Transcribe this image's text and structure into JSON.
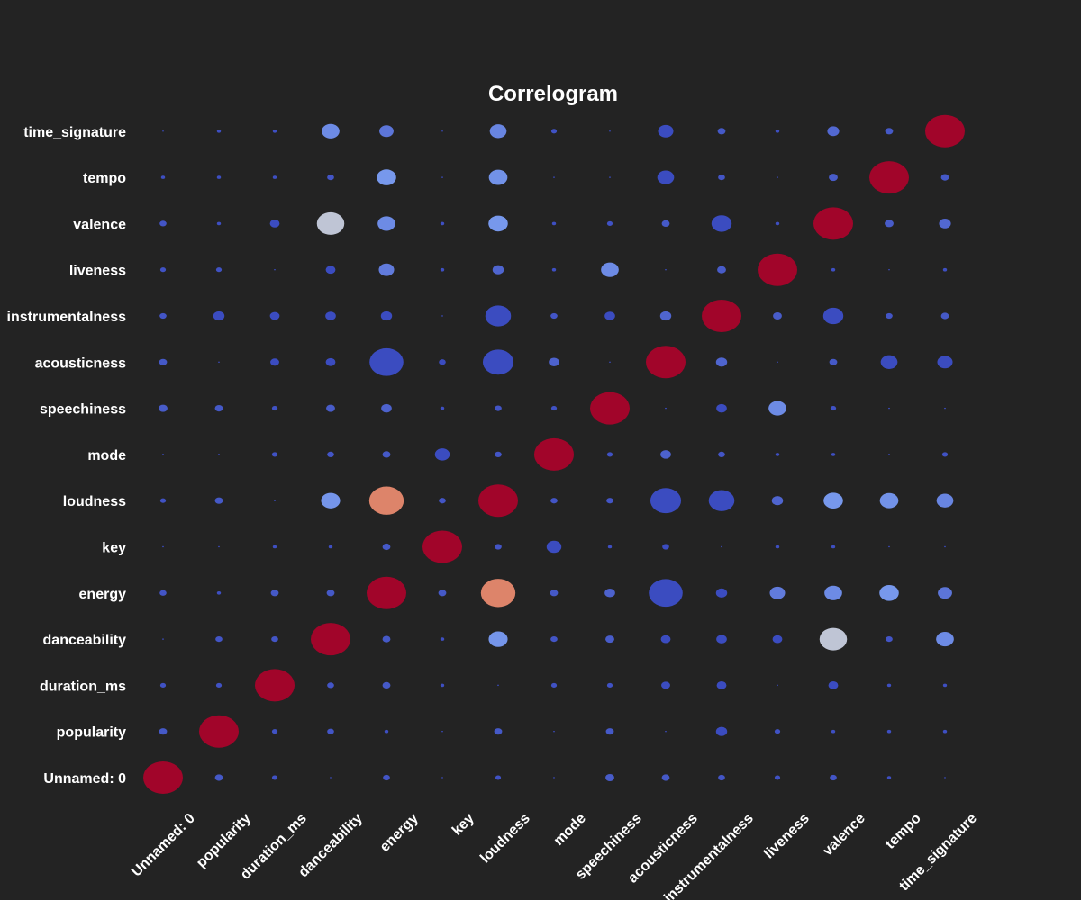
{
  "chart_data": {
    "type": "heatmap",
    "title": "Correlogram",
    "xlabel": "",
    "ylabel": "",
    "grid": false,
    "legend": "none",
    "color_scale": {
      "negative": "#3b4cc0",
      "zero": "#c5c9d3",
      "positive": "#a1052a"
    },
    "variables": [
      "Unnamed: 0",
      "popularity",
      "duration_ms",
      "danceability",
      "energy",
      "key",
      "loudness",
      "mode",
      "speechiness",
      "acousticness",
      "instrumentalness",
      "liveness",
      "valence",
      "tempo",
      "time_signature"
    ],
    "matrix": [
      [
        1.0,
        0.04,
        0.02,
        0.0,
        0.03,
        0.0,
        0.02,
        0.0,
        0.05,
        0.04,
        0.03,
        0.02,
        0.03,
        0.01,
        0.0
      ],
      [
        0.04,
        1.0,
        0.02,
        0.03,
        0.01,
        0.0,
        0.04,
        0.0,
        0.04,
        0.0,
        -0.08,
        0.02,
        0.01,
        0.01,
        0.01
      ],
      [
        0.02,
        0.02,
        1.0,
        0.03,
        0.04,
        0.01,
        0.0,
        0.02,
        0.02,
        -0.05,
        -0.06,
        0.0,
        -0.06,
        0.01,
        0.01
      ],
      [
        0.0,
        0.03,
        0.03,
        1.0,
        0.04,
        0.01,
        0.23,
        0.03,
        0.05,
        -0.06,
        -0.07,
        -0.06,
        0.48,
        0.03,
        0.2
      ],
      [
        0.03,
        0.01,
        0.04,
        0.04,
        1.0,
        0.04,
        0.76,
        0.04,
        0.07,
        -0.73,
        -0.08,
        0.15,
        0.2,
        0.24,
        0.13
      ],
      [
        0.0,
        0.0,
        0.01,
        0.01,
        0.04,
        1.0,
        0.03,
        -0.14,
        0.01,
        -0.03,
        0.0,
        0.01,
        0.01,
        0.0,
        0.0
      ],
      [
        0.02,
        0.04,
        0.0,
        0.23,
        0.76,
        0.03,
        1.0,
        0.03,
        0.03,
        -0.6,
        -0.42,
        0.08,
        0.24,
        0.22,
        0.18
      ],
      [
        0.0,
        0.0,
        0.02,
        0.03,
        0.04,
        -0.14,
        0.03,
        1.0,
        0.02,
        0.07,
        0.03,
        0.01,
        0.01,
        0.0,
        0.02
      ],
      [
        0.05,
        0.04,
        0.02,
        0.05,
        0.07,
        0.01,
        0.03,
        0.02,
        1.0,
        0.0,
        -0.07,
        0.2,
        0.02,
        0.0,
        0.0
      ],
      [
        0.04,
        0.0,
        -0.05,
        -0.06,
        -0.73,
        -0.03,
        -0.6,
        0.07,
        0.0,
        1.0,
        0.08,
        0.0,
        0.04,
        -0.18,
        -0.15
      ],
      [
        0.03,
        -0.08,
        -0.06,
        -0.07,
        -0.08,
        0.0,
        -0.42,
        0.03,
        -0.07,
        0.08,
        1.0,
        0.05,
        -0.26,
        0.03,
        0.04
      ],
      [
        0.02,
        0.02,
        0.0,
        -0.06,
        0.15,
        0.01,
        0.08,
        0.01,
        0.2,
        0.0,
        0.05,
        1.0,
        0.01,
        0.0,
        0.01
      ],
      [
        0.03,
        0.01,
        -0.06,
        0.48,
        0.2,
        0.01,
        0.24,
        0.01,
        0.02,
        0.04,
        -0.26,
        0.01,
        1.0,
        0.05,
        0.09
      ],
      [
        0.01,
        0.01,
        0.01,
        0.03,
        0.24,
        0.0,
        0.22,
        0.0,
        0.0,
        -0.18,
        0.03,
        0.0,
        0.05,
        1.0,
        0.04
      ],
      [
        0.0,
        0.01,
        0.01,
        0.2,
        0.13,
        0.0,
        0.18,
        0.02,
        0.0,
        -0.15,
        0.04,
        0.01,
        0.09,
        0.04,
        1.0
      ]
    ]
  }
}
